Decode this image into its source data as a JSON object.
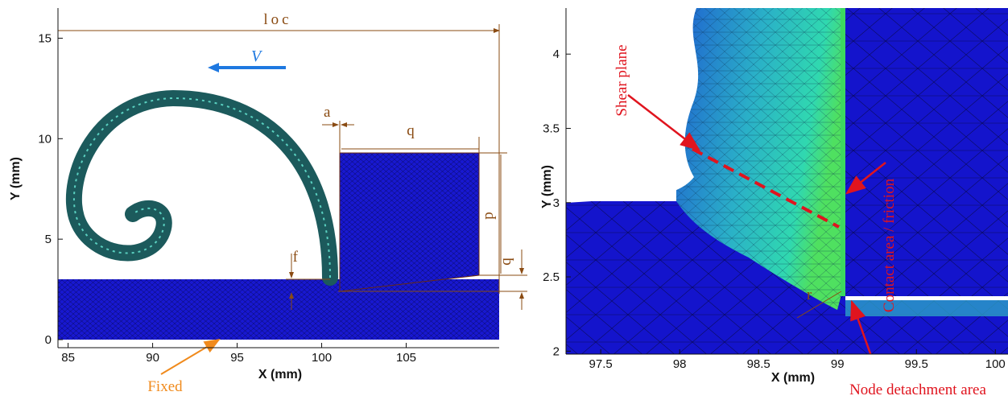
{
  "panels": [
    {
      "xlabel": "X (mm)",
      "ylabel": "Y (mm)",
      "xlim": [
        84.4,
        110.5
      ],
      "ylim": [
        -0.4,
        16.5
      ],
      "xticks": [
        85,
        90,
        95,
        100,
        105
      ],
      "yticks": [
        0,
        5,
        10,
        15
      ],
      "annotations": {
        "loc": "loc",
        "velocity": "V",
        "a": "a",
        "q_top": "q",
        "p": "p",
        "f": "f",
        "q_side": "q",
        "fixed": "Fixed"
      }
    },
    {
      "xlabel": "X (mm)",
      "ylabel": "Y (mm)",
      "xlim": [
        97.28,
        100.07
      ],
      "ylim": [
        1.98,
        4.31
      ],
      "xticks": [
        97.5,
        98,
        98.5,
        99,
        99.5,
        100
      ],
      "yticks": [
        2,
        2.5,
        3,
        3.5,
        4
      ],
      "annotations": {
        "shear": "Shear plane",
        "contact": "Contact area / friction",
        "node": "Node detachment area",
        "r": "r"
      }
    }
  ]
}
